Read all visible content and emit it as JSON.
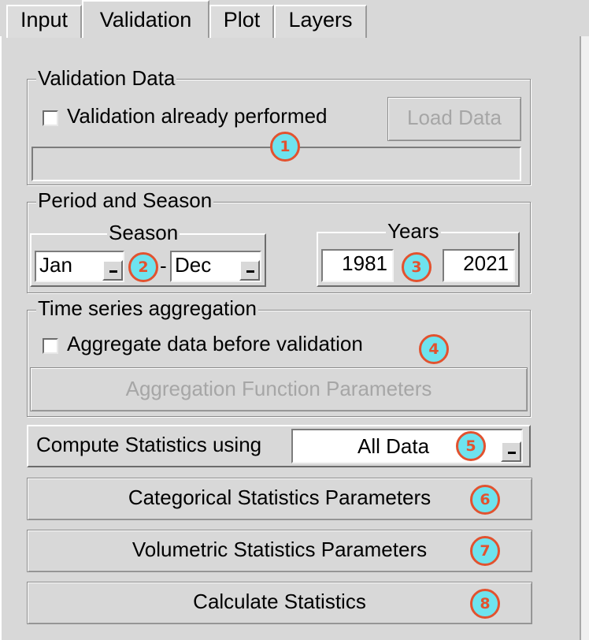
{
  "tabs": [
    {
      "label": "Input"
    },
    {
      "label": "Validation"
    },
    {
      "label": "Plot"
    },
    {
      "label": "Layers"
    }
  ],
  "validation_data": {
    "title": "Validation Data",
    "checkbox_label": "Validation already performed",
    "load_button": "Load Data",
    "path_value": ""
  },
  "period_season": {
    "title": "Period and Season",
    "season_title": "Season",
    "season_start": "Jan",
    "season_end": "Dec",
    "separator": "-",
    "years_title": "Years",
    "year_start": "1981",
    "year_end": "2021"
  },
  "aggregation": {
    "title": "Time series aggregation",
    "checkbox_label": "Aggregate data before validation",
    "params_button": "Aggregation Function Parameters"
  },
  "compute": {
    "label": "Compute Statistics using",
    "selected": "All Data"
  },
  "buttons": {
    "categorical": "Categorical Statistics Parameters",
    "volumetric": "Volumetric Statistics Parameters",
    "calculate": "Calculate Statistics"
  },
  "badges": [
    "1",
    "2",
    "3",
    "4",
    "5",
    "6",
    "7",
    "8"
  ],
  "colors": {
    "badge_fill": "#6ee3ee",
    "badge_stroke": "#e2522f",
    "panel": "#d8d8d8"
  }
}
